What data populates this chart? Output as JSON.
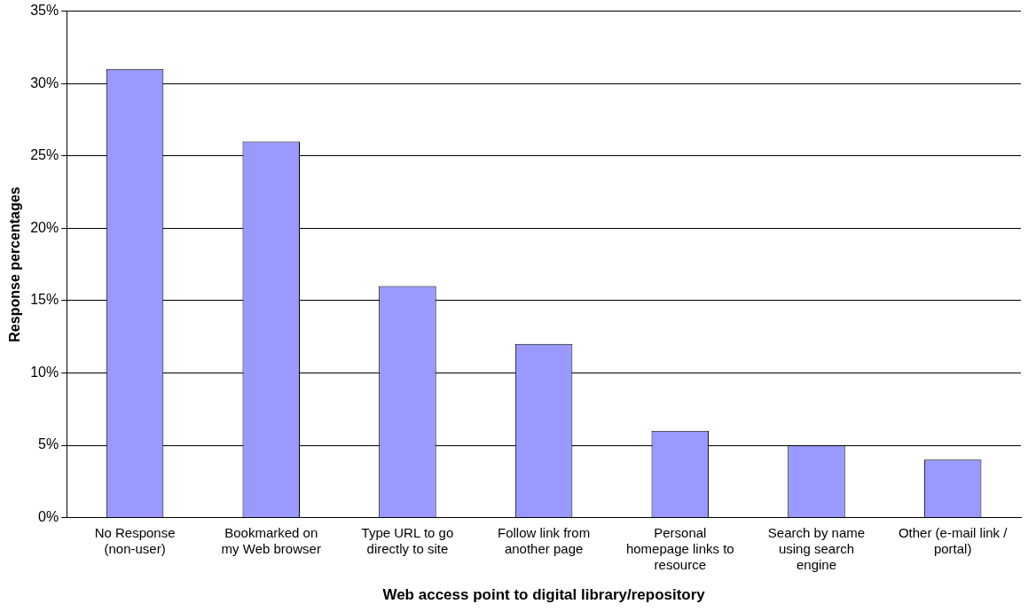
{
  "chart_data": {
    "type": "bar",
    "xlabel": "Web access point to digital library/repository",
    "ylabel": "Response percentages",
    "categories": [
      "No Response (non-user)",
      "Bookmarked on my Web browser",
      "Type URL to go directly to site",
      "Follow link from another page",
      "Personal homepage links to resource",
      "Search by name using search engine",
      "Other (e-mail link / portal)"
    ],
    "values": [
      31,
      26,
      16,
      12,
      6,
      5,
      4
    ],
    "color": "#9999ff",
    "ylim": [
      0,
      35
    ],
    "yticks": [
      {
        "value": 0,
        "label": "0%"
      },
      {
        "value": 5,
        "label": "5%"
      },
      {
        "value": 10,
        "label": "10%"
      },
      {
        "value": 15,
        "label": "15%"
      },
      {
        "value": 20,
        "label": "20%"
      },
      {
        "value": 25,
        "label": "25%"
      },
      {
        "value": 30,
        "label": "30%"
      },
      {
        "value": 35,
        "label": "35%"
      }
    ],
    "grid": "y",
    "legend": false
  }
}
